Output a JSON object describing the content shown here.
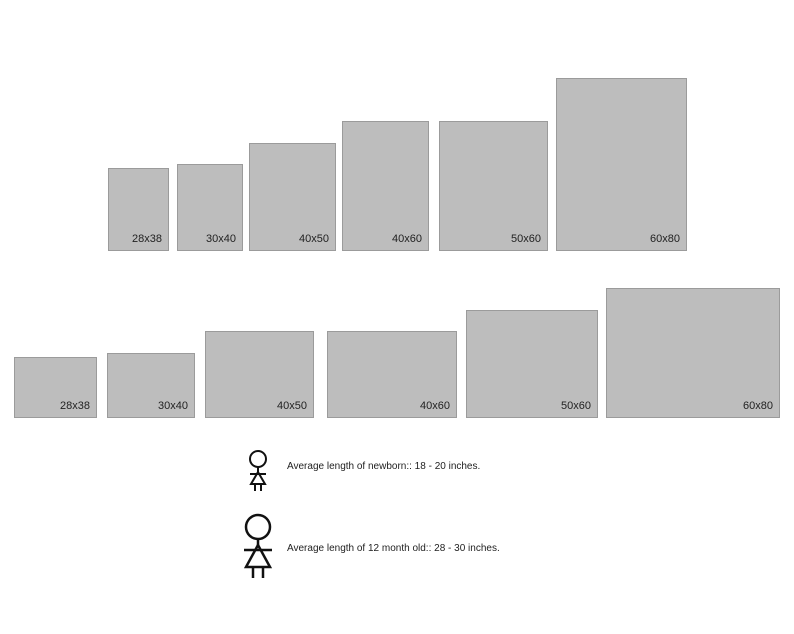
{
  "colors": {
    "box_fill": "#bdbdbd",
    "box_border": "#9b9b9b",
    "text": "#222222",
    "background": "#ffffff"
  },
  "portrait_row": {
    "items": [
      {
        "label": "28x38"
      },
      {
        "label": "30x40"
      },
      {
        "label": "40x50"
      },
      {
        "label": "40x60"
      },
      {
        "label": "50x60"
      },
      {
        "label": "60x80"
      }
    ]
  },
  "landscape_row": {
    "items": [
      {
        "label": "28x38"
      },
      {
        "label": "30x40"
      },
      {
        "label": "40x50"
      },
      {
        "label": "40x60"
      },
      {
        "label": "50x60"
      },
      {
        "label": "60x80"
      }
    ]
  },
  "legend": {
    "newborn": {
      "icon": "baby-figure-icon",
      "text": "Average length of newborn:: 18 - 20 inches."
    },
    "twelve_month": {
      "icon": "toddler-figure-icon",
      "text": "Average length of 12 month old:: 28 - 30 inches."
    }
  }
}
